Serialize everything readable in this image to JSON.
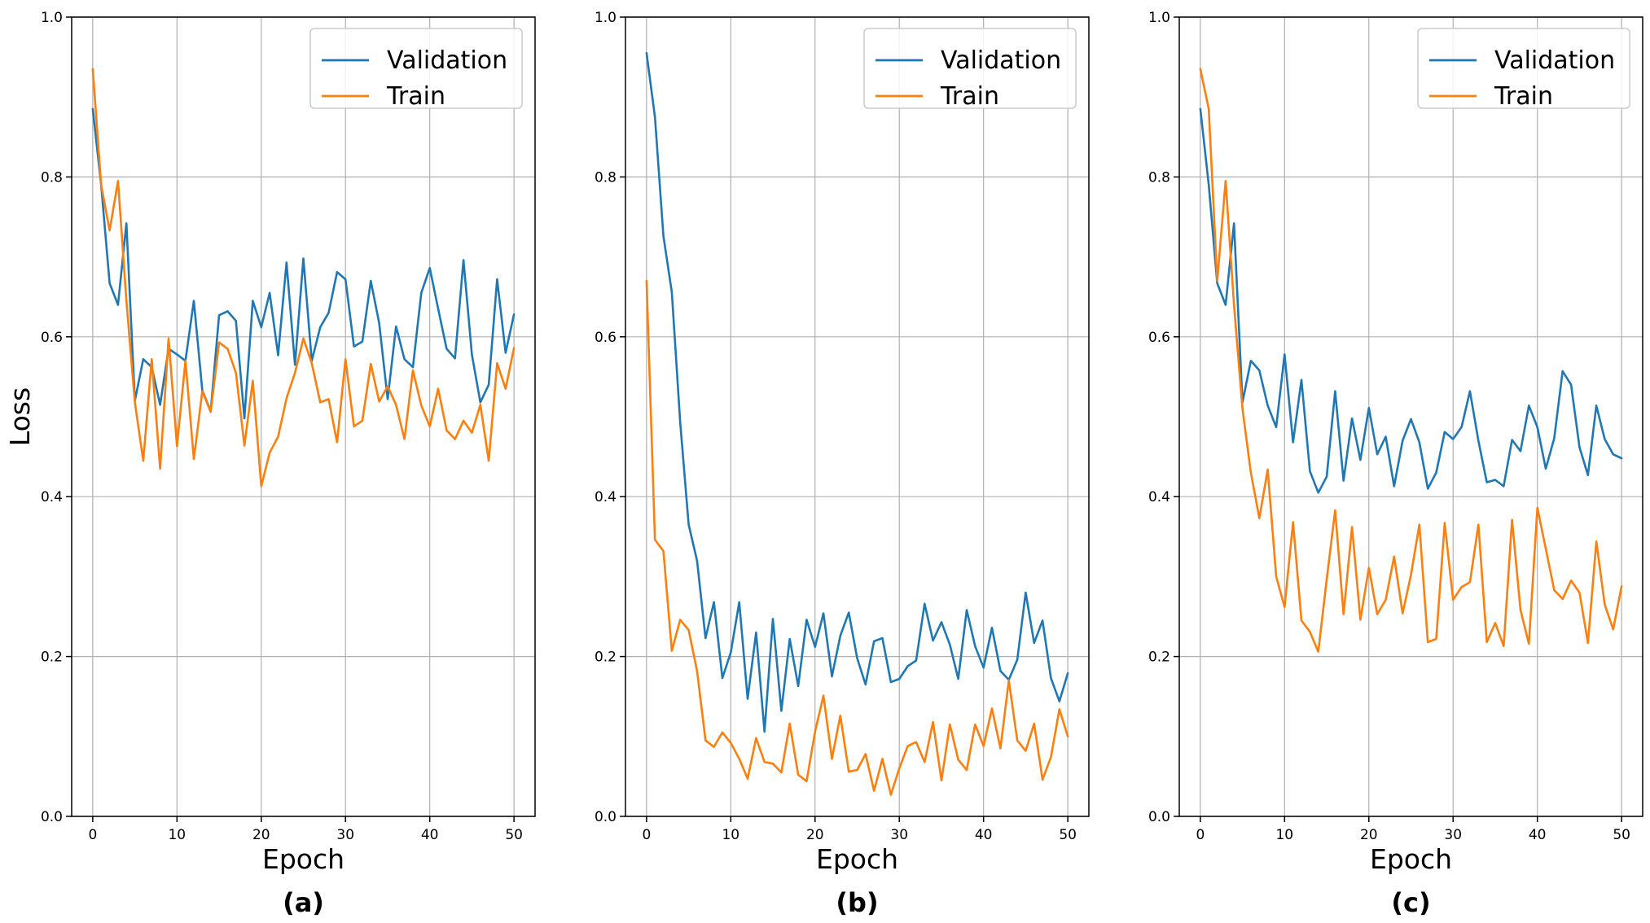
{
  "colors": {
    "validation": "#1f77b4",
    "train": "#ff7f0e"
  },
  "chart_data": [
    {
      "type": "line",
      "panel_label": "(a)",
      "xlabel": "Epoch",
      "ylabel": "Loss",
      "xlim": [
        -2.5,
        52.5
      ],
      "ylim": [
        0.0,
        1.0
      ],
      "xticks": [
        0,
        10,
        20,
        30,
        40,
        50
      ],
      "yticks": [
        0.0,
        0.2,
        0.4,
        0.6,
        0.8,
        1.0
      ],
      "xtick_labels": [
        "0",
        "10",
        "20",
        "30",
        "40",
        "50"
      ],
      "ytick_labels": [
        "0.0",
        "0.2",
        "0.4",
        "0.6",
        "0.8",
        "1.0"
      ],
      "grid": true,
      "legend": "top-right",
      "x": [
        0,
        1,
        2,
        3,
        4,
        5,
        6,
        7,
        8,
        9,
        10,
        11,
        12,
        13,
        14,
        15,
        16,
        17,
        18,
        19,
        20,
        21,
        22,
        23,
        24,
        25,
        26,
        27,
        28,
        29,
        30,
        31,
        32,
        33,
        34,
        35,
        36,
        37,
        38,
        39,
        40,
        41,
        42,
        43,
        44,
        45,
        46,
        47,
        48,
        49,
        50
      ],
      "series": [
        {
          "name": "Validation",
          "color_key": "validation",
          "values": [
            0.885,
            0.79,
            0.667,
            0.64,
            0.742,
            0.52,
            0.572,
            0.562,
            0.515,
            0.585,
            0.578,
            0.57,
            0.645,
            0.533,
            0.507,
            0.627,
            0.632,
            0.62,
            0.498,
            0.645,
            0.612,
            0.655,
            0.577,
            0.693,
            0.565,
            0.698,
            0.57,
            0.612,
            0.63,
            0.681,
            0.672,
            0.588,
            0.594,
            0.67,
            0.617,
            0.522,
            0.613,
            0.572,
            0.562,
            0.655,
            0.686,
            0.635,
            0.585,
            0.573,
            0.696,
            0.578,
            0.518,
            0.54,
            0.672,
            0.58,
            0.628
          ]
        },
        {
          "name": "Train",
          "color_key": "train",
          "values": [
            0.935,
            0.79,
            0.733,
            0.795,
            0.645,
            0.518,
            0.445,
            0.572,
            0.435,
            0.598,
            0.463,
            0.57,
            0.447,
            0.532,
            0.506,
            0.593,
            0.585,
            0.555,
            0.464,
            0.545,
            0.413,
            0.455,
            0.475,
            0.523,
            0.555,
            0.598,
            0.567,
            0.518,
            0.522,
            0.468,
            0.572,
            0.488,
            0.495,
            0.566,
            0.519,
            0.538,
            0.515,
            0.472,
            0.558,
            0.514,
            0.488,
            0.535,
            0.483,
            0.472,
            0.495,
            0.48,
            0.515,
            0.445,
            0.567,
            0.535,
            0.586
          ]
        }
      ]
    },
    {
      "type": "line",
      "panel_label": "(b)",
      "xlabel": "Epoch",
      "ylabel": "",
      "xlim": [
        -2.5,
        52.5
      ],
      "ylim": [
        0.0,
        1.0
      ],
      "xticks": [
        0,
        10,
        20,
        30,
        40,
        50
      ],
      "yticks": [
        0.0,
        0.2,
        0.4,
        0.6,
        0.8,
        1.0
      ],
      "xtick_labels": [
        "0",
        "10",
        "20",
        "30",
        "40",
        "50"
      ],
      "ytick_labels": [
        "0.0",
        "0.2",
        "0.4",
        "0.6",
        "0.8",
        "1.0"
      ],
      "grid": true,
      "legend": "top-right",
      "x": [
        0,
        1,
        2,
        3,
        4,
        5,
        6,
        7,
        8,
        9,
        10,
        11,
        12,
        13,
        14,
        15,
        16,
        17,
        18,
        19,
        20,
        21,
        22,
        23,
        24,
        25,
        26,
        27,
        28,
        29,
        30,
        31,
        32,
        33,
        34,
        35,
        36,
        37,
        38,
        39,
        40,
        41,
        42,
        43,
        44,
        45,
        46,
        47,
        48,
        49,
        50
      ],
      "series": [
        {
          "name": "Validation",
          "color_key": "validation",
          "values": [
            0.955,
            0.875,
            0.726,
            0.656,
            0.493,
            0.365,
            0.32,
            0.223,
            0.268,
            0.173,
            0.205,
            0.268,
            0.147,
            0.23,
            0.106,
            0.247,
            0.132,
            0.222,
            0.163,
            0.246,
            0.212,
            0.254,
            0.175,
            0.226,
            0.255,
            0.198,
            0.165,
            0.219,
            0.223,
            0.168,
            0.172,
            0.188,
            0.195,
            0.266,
            0.22,
            0.243,
            0.215,
            0.172,
            0.258,
            0.213,
            0.186,
            0.236,
            0.182,
            0.171,
            0.196,
            0.28,
            0.217,
            0.245,
            0.173,
            0.144,
            0.179
          ]
        },
        {
          "name": "Train",
          "color_key": "train",
          "values": [
            0.67,
            0.346,
            0.332,
            0.207,
            0.246,
            0.233,
            0.182,
            0.095,
            0.087,
            0.105,
            0.092,
            0.072,
            0.047,
            0.098,
            0.068,
            0.066,
            0.055,
            0.116,
            0.052,
            0.044,
            0.106,
            0.151,
            0.072,
            0.126,
            0.056,
            0.058,
            0.078,
            0.032,
            0.072,
            0.027,
            0.06,
            0.088,
            0.093,
            0.068,
            0.118,
            0.045,
            0.115,
            0.071,
            0.058,
            0.115,
            0.088,
            0.135,
            0.085,
            0.17,
            0.095,
            0.082,
            0.116,
            0.046,
            0.074,
            0.134,
            0.1
          ]
        }
      ]
    },
    {
      "type": "line",
      "panel_label": "(c)",
      "xlabel": "Epoch",
      "ylabel": "",
      "xlim": [
        -2.5,
        52.5
      ],
      "ylim": [
        0.0,
        1.0
      ],
      "xticks": [
        0,
        10,
        20,
        30,
        40,
        50
      ],
      "yticks": [
        0.0,
        0.2,
        0.4,
        0.6,
        0.8,
        1.0
      ],
      "xtick_labels": [
        "0",
        "10",
        "20",
        "30",
        "40",
        "50"
      ],
      "ytick_labels": [
        "0.0",
        "0.2",
        "0.4",
        "0.6",
        "0.8",
        "1.0"
      ],
      "grid": true,
      "legend": "top-right",
      "x": [
        0,
        1,
        2,
        3,
        4,
        5,
        6,
        7,
        8,
        9,
        10,
        11,
        12,
        13,
        14,
        15,
        16,
        17,
        18,
        19,
        20,
        21,
        22,
        23,
        24,
        25,
        26,
        27,
        28,
        29,
        30,
        31,
        32,
        33,
        34,
        35,
        36,
        37,
        38,
        39,
        40,
        41,
        42,
        43,
        44,
        45,
        46,
        47,
        48,
        49,
        50
      ],
      "series": [
        {
          "name": "Validation",
          "color_key": "validation",
          "values": [
            0.885,
            0.79,
            0.667,
            0.64,
            0.742,
            0.518,
            0.57,
            0.558,
            0.514,
            0.487,
            0.578,
            0.468,
            0.546,
            0.432,
            0.405,
            0.425,
            0.532,
            0.42,
            0.498,
            0.446,
            0.511,
            0.453,
            0.475,
            0.413,
            0.47,
            0.497,
            0.468,
            0.41,
            0.43,
            0.481,
            0.472,
            0.487,
            0.532,
            0.47,
            0.418,
            0.421,
            0.413,
            0.471,
            0.457,
            0.514,
            0.487,
            0.435,
            0.473,
            0.557,
            0.54,
            0.462,
            0.427,
            0.514,
            0.472,
            0.453,
            0.448
          ]
        },
        {
          "name": "Train",
          "color_key": "train",
          "values": [
            0.935,
            0.885,
            0.67,
            0.795,
            0.64,
            0.51,
            0.43,
            0.373,
            0.434,
            0.3,
            0.262,
            0.368,
            0.245,
            0.231,
            0.206,
            0.296,
            0.383,
            0.253,
            0.362,
            0.246,
            0.311,
            0.253,
            0.271,
            0.325,
            0.254,
            0.302,
            0.365,
            0.218,
            0.222,
            0.367,
            0.271,
            0.287,
            0.293,
            0.365,
            0.218,
            0.242,
            0.213,
            0.371,
            0.258,
            0.216,
            0.386,
            0.335,
            0.283,
            0.272,
            0.295,
            0.28,
            0.217,
            0.344,
            0.265,
            0.234,
            0.288
          ]
        }
      ]
    }
  ]
}
